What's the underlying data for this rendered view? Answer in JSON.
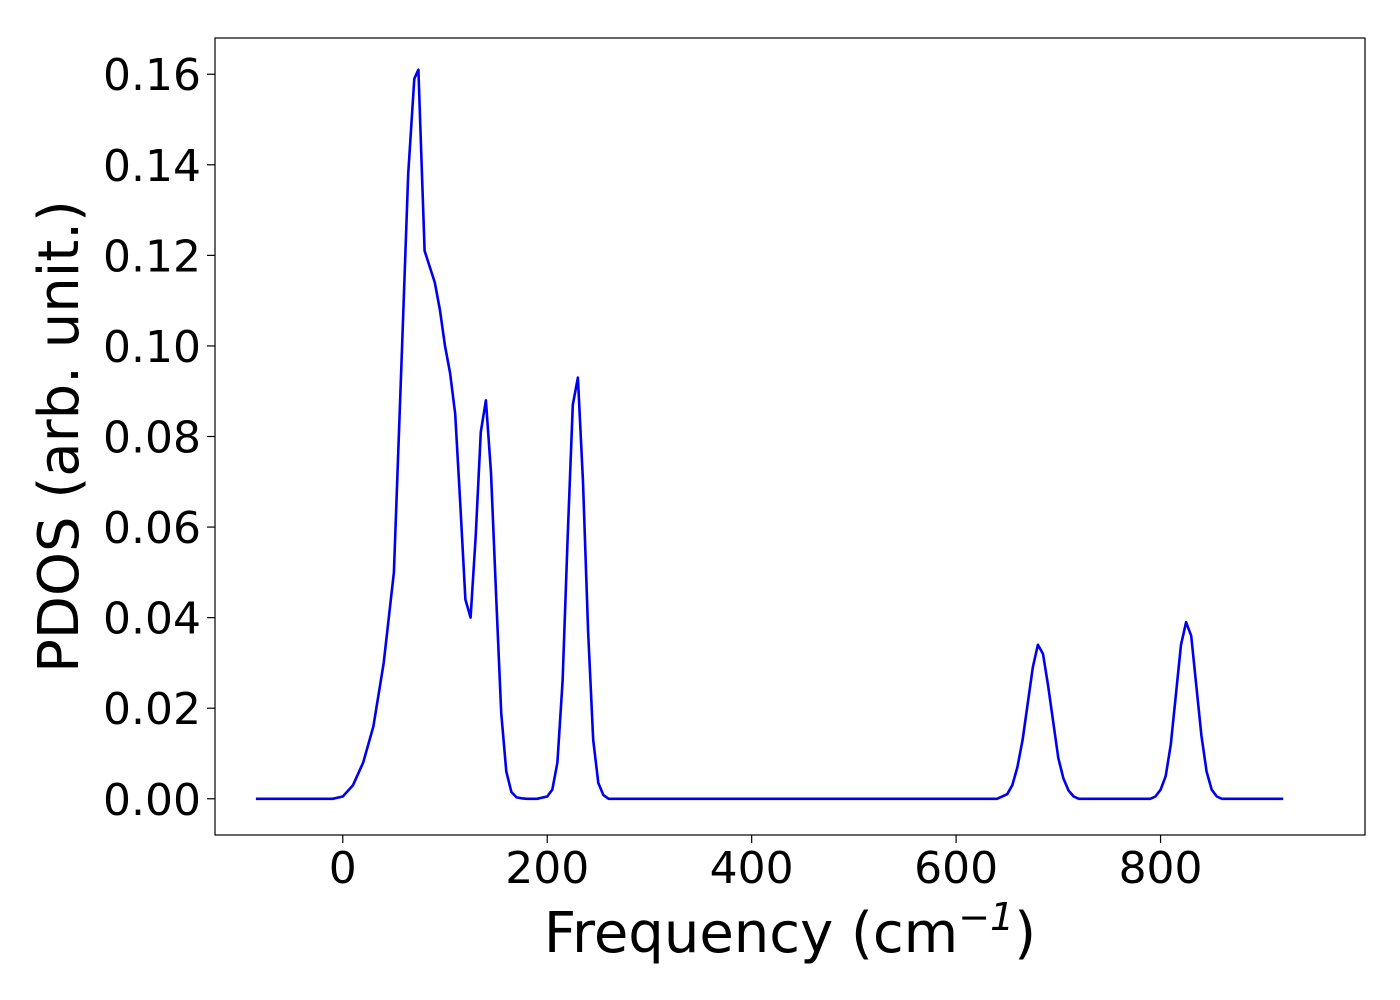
{
  "chart_data": {
    "type": "line",
    "title": "",
    "xlabel": "Frequency (cm",
    "xlabel_sup": "−1",
    "xlabel_close": ")",
    "ylabel": "PDOS (arb. unit.)",
    "xlim": [
      -125,
      1000
    ],
    "ylim": [
      -0.008,
      0.168
    ],
    "x_ticks": [
      0,
      200,
      400,
      600,
      800
    ],
    "x_tick_labels": [
      "0",
      "200",
      "400",
      "600",
      "800"
    ],
    "y_ticks": [
      0.0,
      0.02,
      0.04,
      0.06,
      0.08,
      0.1,
      0.12,
      0.14,
      0.16
    ],
    "y_tick_labels": [
      "0.00",
      "0.02",
      "0.04",
      "0.06",
      "0.08",
      "0.10",
      "0.12",
      "0.14",
      "0.16"
    ],
    "grid": false,
    "legend": "none",
    "series": [
      {
        "color": "#0000ee",
        "x": [
          -85,
          -10,
          0,
          10,
          20,
          30,
          40,
          50,
          58,
          64,
          70,
          74,
          80,
          90,
          95,
          100,
          105,
          110,
          115,
          120,
          125,
          130,
          135,
          140,
          145,
          150,
          155,
          160,
          165,
          170,
          175,
          180,
          190,
          200,
          205,
          210,
          215,
          220,
          225,
          230,
          235,
          240,
          245,
          250,
          255,
          260,
          270,
          300,
          640,
          650,
          655,
          660,
          665,
          670,
          675,
          680,
          685,
          690,
          695,
          700,
          705,
          710,
          715,
          720,
          730,
          790,
          795,
          800,
          805,
          810,
          815,
          820,
          825,
          830,
          835,
          840,
          845,
          850,
          855,
          860,
          870,
          920
        ],
        "values": [
          0.0,
          0.0,
          0.0005,
          0.003,
          0.008,
          0.016,
          0.03,
          0.05,
          0.1,
          0.138,
          0.159,
          0.161,
          0.121,
          0.114,
          0.108,
          0.1,
          0.094,
          0.085,
          0.065,
          0.044,
          0.04,
          0.058,
          0.081,
          0.088,
          0.072,
          0.045,
          0.019,
          0.006,
          0.0015,
          0.0003,
          0.0001,
          0.0,
          0.0,
          0.0005,
          0.002,
          0.008,
          0.026,
          0.058,
          0.087,
          0.093,
          0.07,
          0.037,
          0.013,
          0.0035,
          0.0008,
          0.0,
          0.0,
          0.0,
          0.0,
          0.001,
          0.003,
          0.007,
          0.013,
          0.021,
          0.029,
          0.034,
          0.032,
          0.025,
          0.017,
          0.009,
          0.0045,
          0.0018,
          0.0005,
          0.0,
          0.0,
          0.0,
          0.0005,
          0.002,
          0.005,
          0.012,
          0.023,
          0.034,
          0.039,
          0.036,
          0.025,
          0.014,
          0.006,
          0.002,
          0.0005,
          0.0,
          0.0,
          0.0
        ]
      }
    ]
  }
}
